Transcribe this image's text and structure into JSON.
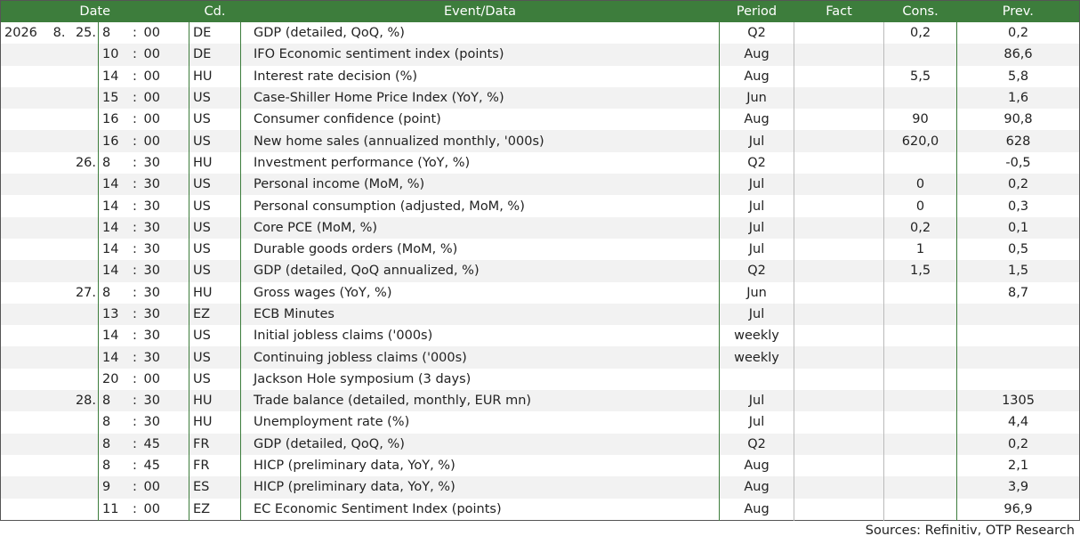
{
  "header": {
    "date": "Date",
    "code": "Cd.",
    "event": "Event/Data",
    "period": "Period",
    "fact": "Fact",
    "cons": "Cons.",
    "prev": "Prev."
  },
  "time_separator": ":",
  "table": {
    "rows": [
      {
        "year": "2026",
        "month": "8.",
        "day": "25.",
        "hour": "8",
        "minute": "00",
        "code": "DE",
        "event": "GDP (detailed, QoQ, %)",
        "period": "Q2",
        "cons": "0,2",
        "prev": "0,2"
      },
      {
        "hour": "10",
        "minute": "00",
        "code": "DE",
        "event": "IFO Economic sentiment index (points)",
        "period": "Aug",
        "prev": "86,6"
      },
      {
        "hour": "14",
        "minute": "00",
        "code": "HU",
        "event": "Interest rate decision (%)",
        "period": "Aug",
        "cons": "5,5",
        "prev": "5,8"
      },
      {
        "hour": "15",
        "minute": "00",
        "code": "US",
        "event": "Case-Shiller Home Price Index (YoY, %)",
        "period": "Jun",
        "prev": "1,6"
      },
      {
        "hour": "16",
        "minute": "00",
        "code": "US",
        "event": "Consumer confidence (point)",
        "period": "Aug",
        "cons": "90",
        "prev": "90,8"
      },
      {
        "hour": "16",
        "minute": "00",
        "code": "US",
        "event": "New home sales (annualized monthly, '000s)",
        "period": "Jul",
        "cons": "620,0",
        "prev": "628"
      },
      {
        "day": "26.",
        "hour": "8",
        "minute": "30",
        "code": "HU",
        "event": "Investment performance (YoY, %)",
        "period": "Q2",
        "prev": "-0,5"
      },
      {
        "hour": "14",
        "minute": "30",
        "code": "US",
        "event": "Personal income (MoM, %)",
        "period": "Jul",
        "cons": "0",
        "prev": "0,2"
      },
      {
        "hour": "14",
        "minute": "30",
        "code": "US",
        "event": "Personal consumption (adjusted, MoM, %)",
        "period": "Jul",
        "cons": "0",
        "prev": "0,3"
      },
      {
        "hour": "14",
        "minute": "30",
        "code": "US",
        "event": "Core PCE (MoM, %)",
        "period": "Jul",
        "cons": "0,2",
        "prev": "0,1"
      },
      {
        "hour": "14",
        "minute": "30",
        "code": "US",
        "event": "Durable goods orders (MoM, %)",
        "period": "Jul",
        "cons": "1",
        "prev": "0,5"
      },
      {
        "hour": "14",
        "minute": "30",
        "code": "US",
        "event": "GDP (detailed, QoQ annualized, %)",
        "period": "Q2",
        "cons": "1,5",
        "prev": "1,5"
      },
      {
        "day": "27.",
        "hour": "8",
        "minute": "30",
        "code": "HU",
        "event": "Gross wages (YoY, %)",
        "period": "Jun",
        "prev": "8,7"
      },
      {
        "hour": "13",
        "minute": "30",
        "code": "EZ",
        "event": "ECB Minutes",
        "period": "Jul"
      },
      {
        "hour": "14",
        "minute": "30",
        "code": "US",
        "event": "Initial jobless claims ('000s)",
        "period": "weekly"
      },
      {
        "hour": "14",
        "minute": "30",
        "code": "US",
        "event": "Continuing jobless claims ('000s)",
        "period": "weekly"
      },
      {
        "hour": "20",
        "minute": "00",
        "code": "US",
        "event": "Jackson Hole symposium (3 days)"
      },
      {
        "day": "28.",
        "hour": "8",
        "minute": "30",
        "code": "HU",
        "event": "Trade balance (detailed, monthly, EUR mn)",
        "period": "Jul",
        "prev": "1305"
      },
      {
        "hour": "8",
        "minute": "30",
        "code": "HU",
        "event": "Unemployment rate (%)",
        "period": "Jul",
        "prev": "4,4"
      },
      {
        "hour": "8",
        "minute": "45",
        "code": "FR",
        "event": "GDP (detailed, QoQ, %)",
        "period": "Q2",
        "prev": "0,2"
      },
      {
        "hour": "8",
        "minute": "45",
        "code": "FR",
        "event": "HICP (preliminary data, YoY, %)",
        "period": "Aug",
        "prev": "2,1"
      },
      {
        "hour": "9",
        "minute": "00",
        "code": "ES",
        "event": "HICP (preliminary data, YoY, %)",
        "period": "Aug",
        "prev": "3,9"
      },
      {
        "hour": "11",
        "minute": "00",
        "code": "EZ",
        "event": "EC Economic Sentiment Index (points)",
        "period": "Aug",
        "prev": "96,9"
      }
    ]
  },
  "footer": {
    "source": "Sources: Refinitiv, OTP Research"
  }
}
